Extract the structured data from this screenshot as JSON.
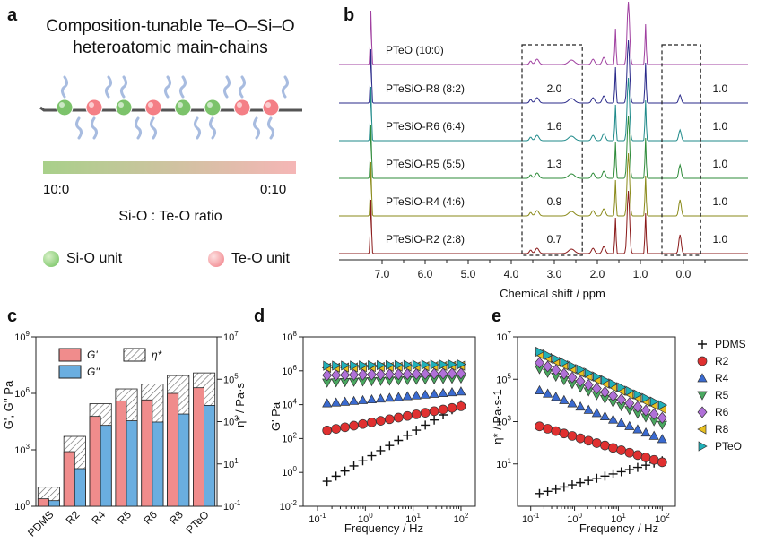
{
  "panel_labels": {
    "a": "a",
    "b": "b",
    "c": "c",
    "d": "d",
    "e": "e"
  },
  "panel_a": {
    "title_line1": "Composition-tunable Te–O–Si–O",
    "title_line2": "heteroatomic main-chains",
    "gradient_left": "10:0",
    "gradient_right": "0:10",
    "gradient_caption": "Si-O : Te-O ratio",
    "legend_si": "Si-O unit",
    "legend_te": "Te-O unit",
    "colors": {
      "si": "#7cc36b",
      "te": "#f47f86",
      "chain": "#555555",
      "sidechain": "#a8bce0"
    }
  },
  "chart_data": [
    {
      "panel": "b",
      "type": "line",
      "xlabel": "Chemical shift / ppm",
      "x_ticks": [
        "7.0",
        "6.0",
        "5.0",
        "4.0",
        "3.0",
        "2.0",
        "1.0",
        "0.0"
      ],
      "xlim": [
        8.0,
        -1.5
      ],
      "x_reversed": true,
      "series": [
        {
          "name": "PTeO (10:0)",
          "color": "#a040a0",
          "int_left": "",
          "int_right": ""
        },
        {
          "name": "PTeSiO-R8 (8:2)",
          "color": "#2a2a8a",
          "int_left": "2.0",
          "int_right": "1.0"
        },
        {
          "name": "PTeSiO-R6 (6:4)",
          "color": "#1f8a8a",
          "int_left": "1.6",
          "int_right": "1.0"
        },
        {
          "name": "PTeSiO-R5 (5:5)",
          "color": "#2e8b3a",
          "int_left": "1.3",
          "int_right": "1.0"
        },
        {
          "name": "PTeSiO-R4 (4:6)",
          "color": "#8a8a1a",
          "int_left": "0.9",
          "int_right": "1.0"
        },
        {
          "name": "PTeSiO-R2 (2:8)",
          "color": "#8a1a1a",
          "int_left": "0.7",
          "int_right": "1.0"
        }
      ]
    },
    {
      "panel": "c",
      "type": "bar",
      "ylabel": "G', G'' Pa",
      "ylabel2": "η* / Pa·s",
      "y_scale": "log",
      "ylim": [
        1,
        1000000000
      ],
      "y2lim": [
        0.1,
        10000000
      ],
      "y_ticks": [
        "10^0",
        "10^3",
        "10^6",
        "10^9"
      ],
      "y2_ticks": [
        "10^-1",
        "10^1",
        "10^3",
        "10^5",
        "10^7"
      ],
      "categories": [
        "PDMS",
        "R2",
        "R4",
        "R5",
        "R6",
        "R8",
        "PTeO"
      ],
      "series": [
        {
          "name": "G'",
          "color": "#f08c8c",
          "values": [
            2.5,
            800,
            60000,
            400000,
            450000,
            1000000,
            2000000
          ]
        },
        {
          "name": "G''",
          "color": "#6aaee0",
          "values": [
            2,
            100,
            20000,
            35000,
            30000,
            80000,
            230000
          ]
        },
        {
          "name": "η*",
          "color": "hatch",
          "values": [
            0.8,
            200,
            7000,
            35000,
            60000,
            150000,
            200000
          ]
        }
      ],
      "legend": [
        "G'",
        "G''",
        "η*"
      ]
    },
    {
      "panel": "d",
      "type": "scatter",
      "xlabel": "Frequency / Hz",
      "ylabel": "G' Pa",
      "x_scale": "log",
      "y_scale": "log",
      "xlim": [
        0.05,
        200
      ],
      "ylim": [
        0.01,
        100000000
      ],
      "x_ticks": [
        "10^-1",
        "10^0",
        "10^1",
        "10^2"
      ],
      "y_ticks": [
        "10^-2",
        "10^0",
        "10^2",
        "10^4",
        "10^6",
        "10^8"
      ],
      "series": [
        {
          "name": "PDMS",
          "marker": "plus",
          "color": "#111111",
          "y0": 0.3,
          "y1": 10000
        },
        {
          "name": "R2",
          "marker": "circle",
          "color": "#e03030",
          "y0": 300,
          "y1": 8000
        },
        {
          "name": "R4",
          "marker": "triangle-up",
          "color": "#3a6ad0",
          "y0": 12000,
          "y1": 60000
        },
        {
          "name": "R5",
          "marker": "triangle-down",
          "color": "#4aa860",
          "y0": 200000,
          "y1": 350000
        },
        {
          "name": "R6",
          "marker": "diamond",
          "color": "#b070d8",
          "y0": 550000,
          "y1": 700000
        },
        {
          "name": "R8",
          "marker": "triangle-left",
          "color": "#e8c020",
          "y0": 1500000,
          "y1": 2000000
        },
        {
          "name": "PTeO",
          "marker": "triangle-right",
          "color": "#20b0b8",
          "y0": 2000000,
          "y1": 2400000
        }
      ]
    },
    {
      "panel": "e",
      "type": "scatter",
      "xlabel": "Frequency / Hz",
      "ylabel": "η* / Pa·s-1",
      "x_scale": "log",
      "y_scale": "log",
      "xlim": [
        0.05,
        200
      ],
      "ylim": [
        0.1,
        10000000
      ],
      "x_ticks": [
        "10^-1",
        "10^0",
        "10^1",
        "10^2"
      ],
      "y_ticks": [
        "10^1",
        "10^3",
        "10^5",
        "10^7"
      ],
      "series": [
        {
          "name": "PDMS",
          "marker": "plus",
          "color": "#111111",
          "y0": 0.4,
          "y1": 14
        },
        {
          "name": "R2",
          "marker": "circle",
          "color": "#e03030",
          "y0": 600,
          "y1": 12
        },
        {
          "name": "R4",
          "marker": "triangle-up",
          "color": "#3a6ad0",
          "y0": 30000,
          "y1": 150
        },
        {
          "name": "R5",
          "marker": "triangle-down",
          "color": "#4aa860",
          "y0": 300000,
          "y1": 700
        },
        {
          "name": "R6",
          "marker": "diamond",
          "color": "#b070d8",
          "y0": 600000,
          "y1": 1500
        },
        {
          "name": "R8",
          "marker": "triangle-left",
          "color": "#e8c020",
          "y0": 1500000,
          "y1": 4000
        },
        {
          "name": "PTeO",
          "marker": "triangle-right",
          "color": "#20b0b8",
          "y0": 2000000,
          "y1": 6000
        }
      ],
      "legend": [
        "PDMS",
        "R2",
        "R4",
        "R5",
        "R6",
        "R8",
        "PTeO"
      ]
    }
  ]
}
